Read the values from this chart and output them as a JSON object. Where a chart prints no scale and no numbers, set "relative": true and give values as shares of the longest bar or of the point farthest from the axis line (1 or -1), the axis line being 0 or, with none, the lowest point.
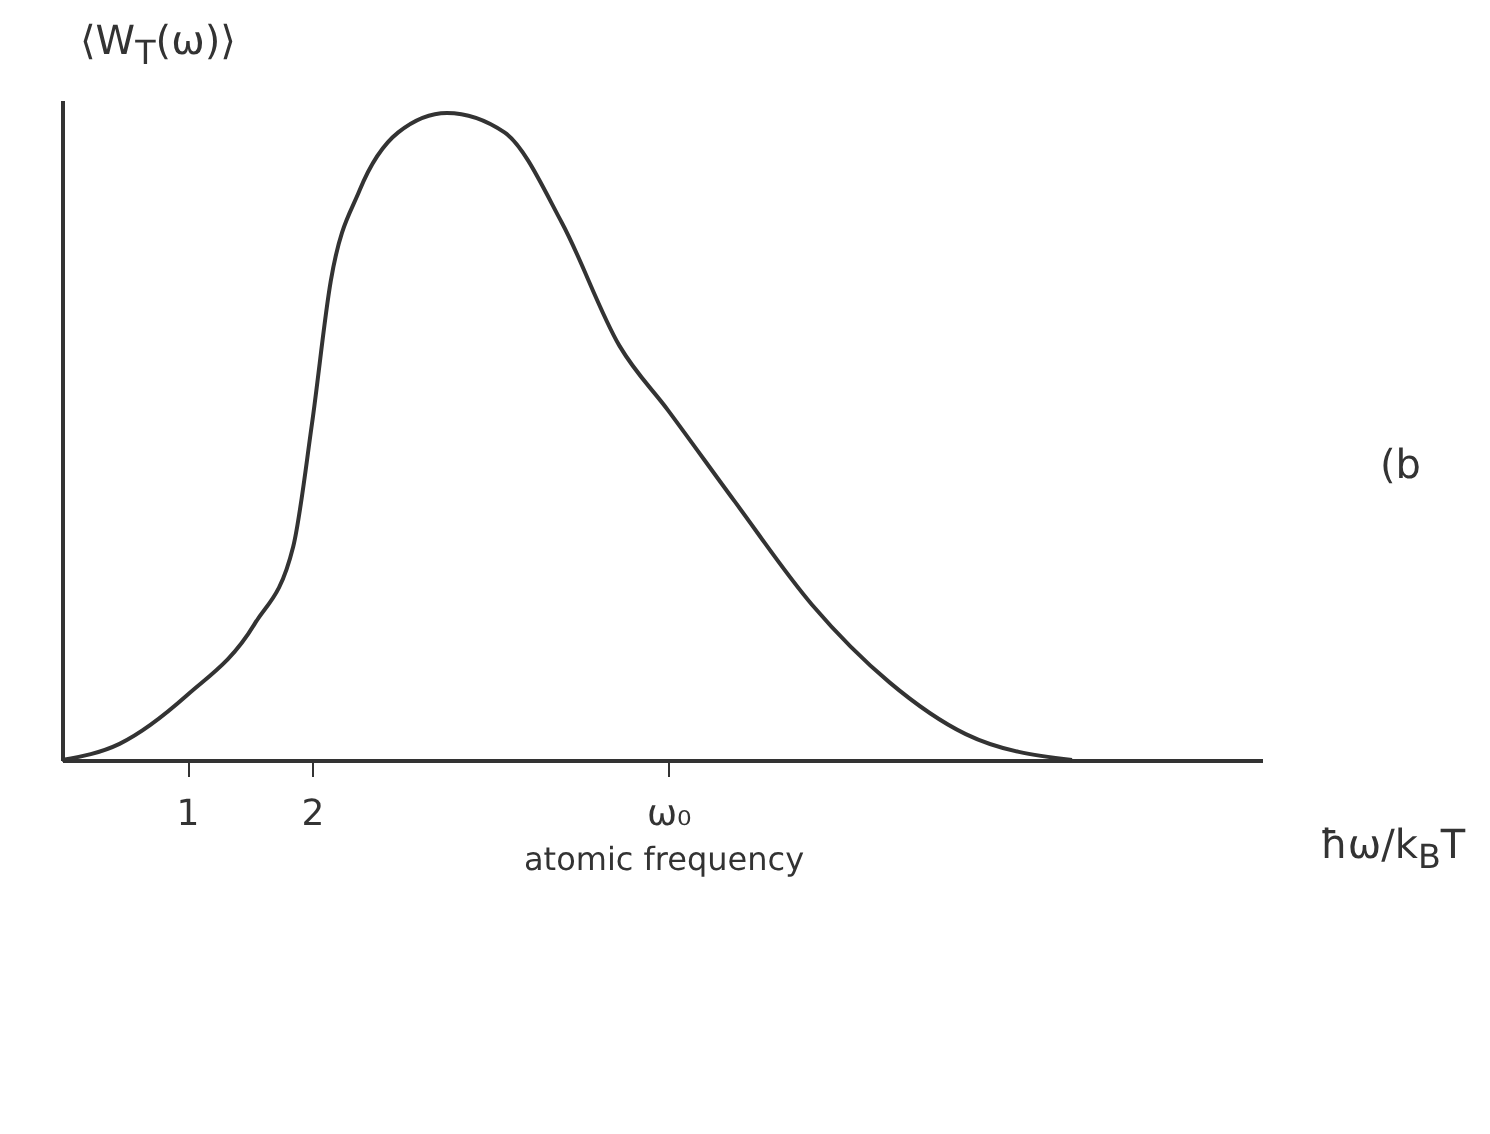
{
  "chart_data": {
    "type": "line",
    "ylabel": "⟨W$_{T}$(ω)⟩",
    "xlabel": "ħω/k$_{B}$T",
    "relative": true,
    "x": [
      0,
      0.46,
      1.0,
      1.54,
      1.85,
      2.0,
      2.15,
      2.38,
      2.69,
      3.08,
      3.54,
      4.0,
      4.46,
      4.85,
      5.38,
      6.0,
      6.62,
      7.23,
      8.08
    ],
    "series": [
      {
        "color": "#333333",
        "values": [
          0,
          0.025,
          0.1,
          0.21,
          0.33,
          0.52,
          0.74,
          0.88,
          0.97,
          1.0,
          0.97,
          0.83,
          0.64,
          0.54,
          0.4,
          0.24,
          0.12,
          0.04,
          0.0
        ]
      }
    ],
    "xlim": [
      0,
      9.6
    ],
    "xticks": [
      1,
      2,
      {
        "value": 4.85,
        "label": "ω₀"
      }
    ],
    "tick_labels": "x",
    "grid": false,
    "marker": "none",
    "line_style": "solid",
    "annotations": [
      "atomic frequency",
      "(b"
    ]
  }
}
